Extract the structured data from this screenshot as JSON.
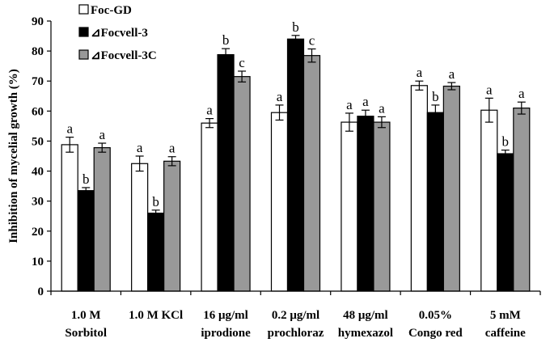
{
  "chart_data": {
    "type": "bar",
    "title": "",
    "xlabel": "",
    "ylabel": "Inhibition of mycelial growth (%)",
    "ylim": [
      0,
      90
    ],
    "yticks": [
      0,
      10,
      20,
      30,
      40,
      50,
      60,
      70,
      80,
      90
    ],
    "grid": false,
    "legend_position": "top-left",
    "categories": [
      [
        "1.0 M",
        "Sorbitol"
      ],
      [
        "1.0 M KCl",
        ""
      ],
      [
        "16 μg/ml",
        "iprodione"
      ],
      [
        "0.2 μg/ml",
        "prochloraz"
      ],
      [
        "48 μg/ml",
        "hymexazol"
      ],
      [
        "0.05%",
        "Congo red"
      ],
      [
        "5 mM",
        "caffeine"
      ]
    ],
    "series": [
      {
        "name": "Foc-GD",
        "legend_label": "Foc-GD",
        "color": "#ffffff",
        "values": [
          48.8,
          42.5,
          56.0,
          59.5,
          56.3,
          68.5,
          60.3
        ],
        "errors": [
          2.5,
          2.5,
          1.5,
          2.5,
          3.0,
          1.5,
          4.0
        ],
        "letters": [
          "a",
          "a",
          "a",
          "a",
          "a",
          "a",
          "a"
        ]
      },
      {
        "name": "ΔFocvell-3",
        "legend_label": "⊿Focvell-3",
        "color": "#000000",
        "values": [
          33.5,
          26.0,
          78.8,
          84.0,
          58.3,
          59.5,
          45.8
        ],
        "errors": [
          1.0,
          1.0,
          2.0,
          1.2,
          2.0,
          2.5,
          1.2
        ],
        "letters": [
          "b",
          "b",
          "b",
          "b",
          "a",
          "b",
          "b"
        ]
      },
      {
        "name": "ΔFocvell-3C",
        "legend_label": "⊿Focvell-3C",
        "color": "#999999",
        "values": [
          47.8,
          43.3,
          71.5,
          78.5,
          56.3,
          68.3,
          61.0
        ],
        "errors": [
          1.5,
          1.5,
          1.8,
          2.2,
          1.8,
          1.2,
          2.0
        ],
        "letters": [
          "a",
          "a",
          "c",
          "c",
          "a",
          "a",
          "a"
        ]
      }
    ]
  }
}
